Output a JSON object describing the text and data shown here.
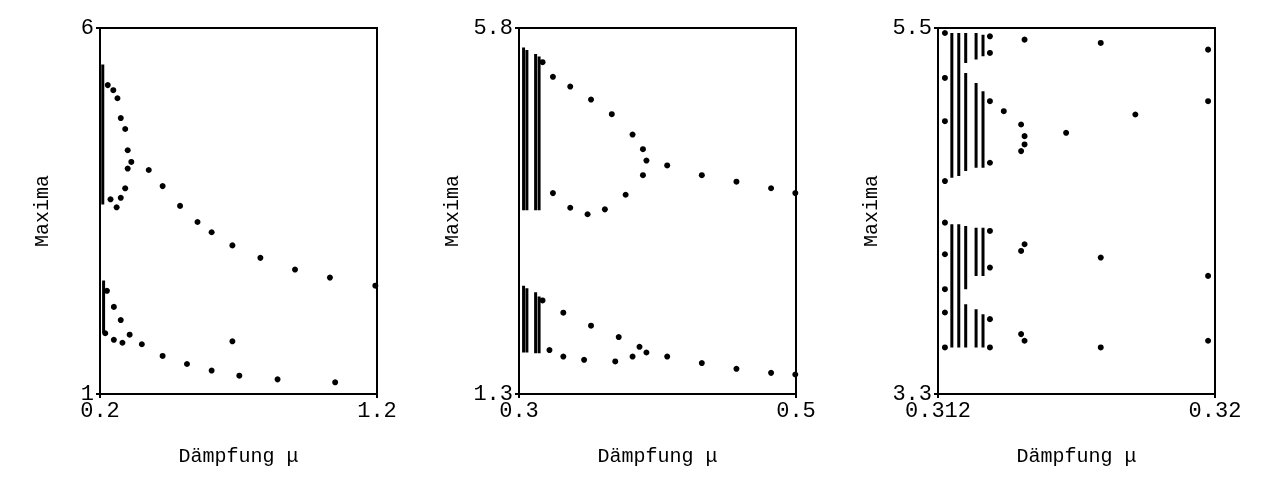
{
  "chart_data": [
    {
      "type": "scatter",
      "xlabel": "Dämpfung μ",
      "ylabel": "Maxima",
      "xlim": [
        0.2,
        1.2
      ],
      "ylim": [
        1,
        6
      ],
      "xticks": [
        0.2,
        1.2
      ],
      "yticks": [
        1,
        6
      ],
      "grid": false,
      "marker": "none",
      "series": [
        {
          "color": "#000000",
          "marker": "circle",
          "x": [
            0.228,
            0.248,
            0.263,
            0.275,
            0.291,
            0.3,
            0.3,
            0.291,
            0.275,
            0.26,
            0.238,
            0.313,
            0.376,
            0.426,
            0.489,
            0.552,
            0.603,
            0.678,
            0.779,
            0.904,
            1.03,
            1.194,
            0.225,
            0.25,
            0.275,
            0.281,
            0.25,
            0.219,
            0.307,
            0.351,
            0.426,
            0.514,
            0.603,
            0.703,
            0.841,
            1.049,
            0.678
          ],
          "values": [
            5.22,
            5.15,
            5.04,
            4.77,
            4.62,
            4.33,
            4.08,
            3.81,
            3.68,
            3.55,
            3.66,
            4.17,
            4.06,
            3.84,
            3.57,
            3.35,
            3.21,
            3.03,
            2.86,
            2.7,
            2.59,
            2.48,
            2.41,
            2.19,
            2.01,
            1.7,
            1.74,
            1.83,
            1.81,
            1.68,
            1.52,
            1.41,
            1.32,
            1.25,
            1.2,
            1.16,
            1.72
          ]
        },
        {
          "type": "line",
          "color": "#000000",
          "x": [
            0.21,
            0.21
          ],
          "values": [
            3.59,
            5.5
          ]
        },
        {
          "type": "line",
          "color": "#000000",
          "x": [
            0.213,
            0.213
          ],
          "values": [
            1.83,
            2.55
          ]
        }
      ]
    },
    {
      "type": "scatter",
      "xlabel": "Dämpfung μ",
      "ylabel": "Maxima",
      "xlim": [
        0.3,
        0.5
      ],
      "ylim": [
        1.3,
        5.8
      ],
      "xticks": [
        0.3,
        0.5
      ],
      "yticks": [
        1.3,
        5.8
      ],
      "grid": false,
      "marker": "none",
      "series": [
        {
          "color": "#000000",
          "marker": "circle",
          "x": [
            0.317,
            0.3245,
            0.337,
            0.352,
            0.367,
            0.382,
            0.3895,
            0.3245,
            0.337,
            0.3495,
            0.362,
            0.377,
            0.3895,
            0.392,
            0.407,
            0.432,
            0.457,
            0.482,
            0.4995,
            0.317,
            0.332,
            0.352,
            0.372,
            0.387,
            0.322,
            0.332,
            0.347,
            0.3695,
            0.382,
            0.392,
            0.407,
            0.432,
            0.457,
            0.482,
            0.4995
          ],
          "values": [
            5.38,
            5.2,
            5.08,
            4.92,
            4.74,
            4.49,
            4.31,
            3.77,
            3.59,
            3.51,
            3.57,
            3.75,
            3.99,
            4.17,
            4.11,
            3.99,
            3.91,
            3.83,
            3.77,
            2.45,
            2.3,
            2.14,
            2.0,
            1.88,
            1.84,
            1.76,
            1.72,
            1.7,
            1.76,
            1.81,
            1.76,
            1.68,
            1.61,
            1.56,
            1.54
          ]
        },
        {
          "type": "line",
          "color": "#000000",
          "x": [
            0.3033,
            0.3033
          ],
          "values": [
            3.56,
            5.56
          ]
        },
        {
          "type": "line",
          "color": "#000000",
          "x": [
            0.3057,
            0.3057
          ],
          "values": [
            3.56,
            5.53
          ]
        },
        {
          "type": "line",
          "color": "#000000",
          "x": [
            0.312,
            0.312
          ],
          "values": [
            3.56,
            5.48
          ]
        },
        {
          "type": "line",
          "color": "#000000",
          "x": [
            0.3145,
            0.3145
          ],
          "values": [
            3.56,
            5.45
          ]
        },
        {
          "type": "line",
          "color": "#000000",
          "x": [
            0.3033,
            0.3033
          ],
          "values": [
            1.81,
            2.63
          ]
        },
        {
          "type": "line",
          "color": "#000000",
          "x": [
            0.3057,
            0.3057
          ],
          "values": [
            1.81,
            2.6
          ]
        },
        {
          "type": "line",
          "color": "#000000",
          "x": [
            0.312,
            0.312
          ],
          "values": [
            1.8,
            2.55
          ]
        },
        {
          "type": "line",
          "color": "#000000",
          "x": [
            0.3145,
            0.3145
          ],
          "values": [
            1.8,
            2.5
          ]
        }
      ]
    },
    {
      "type": "scatter",
      "xlabel": "Dämpfung μ",
      "ylabel": "Maxima",
      "xlim": [
        0.312,
        0.32
      ],
      "ylim": [
        3.3,
        5.5
      ],
      "xticks": [
        0.312,
        0.32
      ],
      "yticks": [
        3.3,
        5.5
      ],
      "grid": false,
      "marker": "none",
      "series": [
        {
          "color": "#000000",
          "marker": "circle",
          "x": [
            0.3122,
            0.3122,
            0.3122,
            0.3122,
            0.3122,
            0.3122,
            0.3122,
            0.3122,
            0.3122,
            0.3135,
            0.3145,
            0.3167,
            0.3198,
            0.3135,
            0.3135,
            0.3139,
            0.3144,
            0.3145,
            0.3145,
            0.3144,
            0.3135,
            0.3157,
            0.3177,
            0.3198,
            0.3135,
            0.3145,
            0.3167,
            0.3198,
            0.3135,
            0.3144,
            0.3135,
            0.3144,
            0.3145,
            0.3135,
            0.3167,
            0.3198
          ],
          "values": [
            5.47,
            5.2,
            4.94,
            4.58,
            4.33,
            4.14,
            3.93,
            3.79,
            3.58,
            5.45,
            5.43,
            5.41,
            5.37,
            5.35,
            5.06,
            5.0,
            4.92,
            4.85,
            4.8,
            4.76,
            4.69,
            4.87,
            4.98,
            5.06,
            4.28,
            4.2,
            4.12,
            4.01,
            4.06,
            4.16,
            3.75,
            3.66,
            3.62,
            3.58,
            3.58,
            3.62
          ]
        },
        {
          "type": "line",
          "color": "#000000",
          "x": [
            0.3124,
            0.3124
          ],
          "values": [
            4.6,
            5.47
          ]
        },
        {
          "type": "line",
          "color": "#000000",
          "x": [
            0.3126,
            0.3126
          ],
          "values": [
            4.61,
            5.47
          ]
        },
        {
          "type": "line",
          "color": "#000000",
          "x": [
            0.3128,
            0.3128
          ],
          "values": [
            4.64,
            5.23
          ]
        },
        {
          "type": "line",
          "color": "#000000",
          "x": [
            0.3128,
            0.3128
          ],
          "values": [
            5.29,
            5.47
          ]
        },
        {
          "type": "line",
          "color": "#000000",
          "x": [
            0.3131,
            0.3131
          ],
          "values": [
            4.66,
            5.17
          ]
        },
        {
          "type": "line",
          "color": "#000000",
          "x": [
            0.3131,
            0.3131
          ],
          "values": [
            5.31,
            5.47
          ]
        },
        {
          "type": "line",
          "color": "#000000",
          "x": [
            0.3133,
            0.3133
          ],
          "values": [
            4.66,
            5.12
          ]
        },
        {
          "type": "line",
          "color": "#000000",
          "x": [
            0.3133,
            0.3133
          ],
          "values": [
            5.33,
            5.46
          ]
        },
        {
          "type": "line",
          "color": "#000000",
          "x": [
            0.3124,
            0.3124
          ],
          "values": [
            3.58,
            4.32
          ]
        },
        {
          "type": "line",
          "color": "#000000",
          "x": [
            0.3126,
            0.3126
          ],
          "values": [
            3.58,
            4.32
          ]
        },
        {
          "type": "line",
          "color": "#000000",
          "x": [
            0.3128,
            0.3128
          ],
          "values": [
            3.58,
            3.84
          ]
        },
        {
          "type": "line",
          "color": "#000000",
          "x": [
            0.3128,
            0.3128
          ],
          "values": [
            3.93,
            4.31
          ]
        },
        {
          "type": "line",
          "color": "#000000",
          "x": [
            0.3131,
            0.3131
          ],
          "values": [
            3.58,
            3.81
          ]
        },
        {
          "type": "line",
          "color": "#000000",
          "x": [
            0.3131,
            0.3131
          ],
          "values": [
            4.01,
            4.3
          ]
        },
        {
          "type": "line",
          "color": "#000000",
          "x": [
            0.3133,
            0.3133
          ],
          "values": [
            3.58,
            3.78
          ]
        },
        {
          "type": "line",
          "color": "#000000",
          "x": [
            0.3133,
            0.3133
          ],
          "values": [
            4.01,
            4.3
          ]
        }
      ]
    }
  ]
}
